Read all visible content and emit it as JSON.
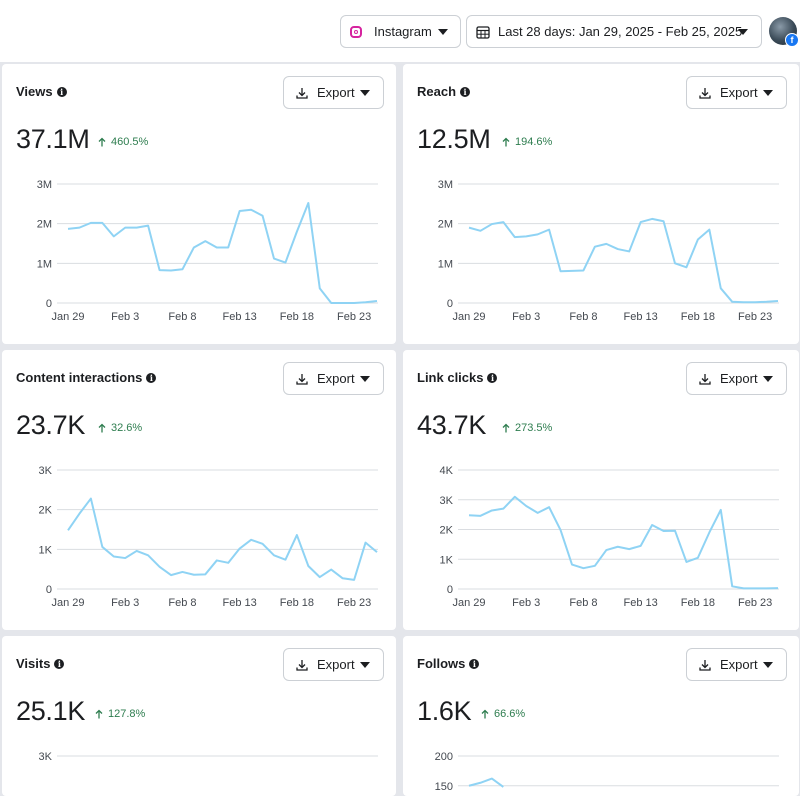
{
  "header": {
    "platform_label": "Instagram",
    "date_range_label": "Last 28 days: Jan 29, 2025 - Feb 25, 2025",
    "platform_icon": "instagram-icon",
    "date_icon": "calendar-icon",
    "avatar_badge": "f"
  },
  "colors": {
    "line": "#8fd3f4",
    "positive_change": "#2e7d4f",
    "grid": "#dadde1"
  },
  "export_label": "Export",
  "x_tick_labels": [
    "Jan 29",
    "Feb 3",
    "Feb 8",
    "Feb 13",
    "Feb 18",
    "Feb 23"
  ],
  "cards": [
    {
      "title": "Views",
      "value": "37.1M",
      "change": "460.5%",
      "chart_data": {
        "type": "line",
        "ylim": [
          0,
          3000000
        ],
        "y_ticks": [
          0,
          1000000,
          2000000,
          3000000
        ],
        "y_tick_labels": [
          "0",
          "1M",
          "2M",
          "3M"
        ],
        "x": [
          "Jan 29",
          "Jan 30",
          "Jan 31",
          "Feb 1",
          "Feb 2",
          "Feb 3",
          "Feb 4",
          "Feb 5",
          "Feb 6",
          "Feb 7",
          "Feb 8",
          "Feb 9",
          "Feb 10",
          "Feb 11",
          "Feb 12",
          "Feb 13",
          "Feb 14",
          "Feb 15",
          "Feb 16",
          "Feb 17",
          "Feb 18",
          "Feb 19",
          "Feb 20",
          "Feb 21",
          "Feb 22",
          "Feb 23",
          "Feb 24",
          "Feb 25"
        ],
        "values": [
          1870000,
          1900000,
          2020000,
          2020000,
          1680000,
          1900000,
          1900000,
          1950000,
          830000,
          820000,
          850000,
          1400000,
          1560000,
          1400000,
          1400000,
          2320000,
          2350000,
          2200000,
          1120000,
          1020000,
          1800000,
          2520000,
          370000,
          0,
          0,
          0,
          20000,
          50000
        ]
      }
    },
    {
      "title": "Reach",
      "value": "12.5M",
      "change": "194.6%",
      "chart_data": {
        "type": "line",
        "ylim": [
          0,
          3000000
        ],
        "y_ticks": [
          0,
          1000000,
          2000000,
          3000000
        ],
        "y_tick_labels": [
          "0",
          "1M",
          "2M",
          "3M"
        ],
        "x": [
          "Jan 29",
          "Jan 30",
          "Jan 31",
          "Feb 1",
          "Feb 2",
          "Feb 3",
          "Feb 4",
          "Feb 5",
          "Feb 6",
          "Feb 7",
          "Feb 8",
          "Feb 9",
          "Feb 10",
          "Feb 11",
          "Feb 12",
          "Feb 13",
          "Feb 14",
          "Feb 15",
          "Feb 16",
          "Feb 17",
          "Feb 18",
          "Feb 19",
          "Feb 20",
          "Feb 21",
          "Feb 22",
          "Feb 23",
          "Feb 24",
          "Feb 25"
        ],
        "values": [
          1900000,
          1820000,
          1990000,
          2040000,
          1660000,
          1680000,
          1730000,
          1850000,
          800000,
          810000,
          820000,
          1420000,
          1490000,
          1360000,
          1300000,
          2040000,
          2120000,
          2060000,
          1000000,
          900000,
          1600000,
          1850000,
          370000,
          30000,
          20000,
          20000,
          30000,
          50000
        ]
      }
    },
    {
      "title": "Content interactions",
      "value": "23.7K",
      "change": "32.6%",
      "chart_data": {
        "type": "line",
        "ylim": [
          0,
          3000
        ],
        "y_ticks": [
          0,
          1000,
          2000,
          3000
        ],
        "y_tick_labels": [
          "0",
          "1K",
          "2K",
          "3K"
        ],
        "x": [
          "Jan 29",
          "Jan 30",
          "Jan 31",
          "Feb 1",
          "Feb 2",
          "Feb 3",
          "Feb 4",
          "Feb 5",
          "Feb 6",
          "Feb 7",
          "Feb 8",
          "Feb 9",
          "Feb 10",
          "Feb 11",
          "Feb 12",
          "Feb 13",
          "Feb 14",
          "Feb 15",
          "Feb 16",
          "Feb 17",
          "Feb 18",
          "Feb 19",
          "Feb 20",
          "Feb 21",
          "Feb 22",
          "Feb 23",
          "Feb 24",
          "Feb 25"
        ],
        "values": [
          1480,
          1900,
          2280,
          1060,
          820,
          780,
          960,
          850,
          560,
          350,
          430,
          360,
          370,
          720,
          660,
          1020,
          1240,
          1140,
          850,
          740,
          1360,
          580,
          300,
          490,
          270,
          230,
          1170,
          930
        ]
      }
    },
    {
      "title": "Link clicks",
      "value": "43.7K",
      "change": "273.5%",
      "chart_data": {
        "type": "line",
        "ylim": [
          0,
          4000
        ],
        "y_ticks": [
          0,
          1000,
          2000,
          3000,
          4000
        ],
        "y_tick_labels": [
          "0",
          "1K",
          "2K",
          "3K",
          "4K"
        ],
        "x": [
          "Jan 29",
          "Jan 30",
          "Jan 31",
          "Feb 1",
          "Feb 2",
          "Feb 3",
          "Feb 4",
          "Feb 5",
          "Feb 6",
          "Feb 7",
          "Feb 8",
          "Feb 9",
          "Feb 10",
          "Feb 11",
          "Feb 12",
          "Feb 13",
          "Feb 14",
          "Feb 15",
          "Feb 16",
          "Feb 17",
          "Feb 18",
          "Feb 19",
          "Feb 20",
          "Feb 21",
          "Feb 22",
          "Feb 23",
          "Feb 24",
          "Feb 25"
        ],
        "values": [
          2480,
          2460,
          2640,
          2700,
          3100,
          2790,
          2560,
          2750,
          1980,
          820,
          700,
          780,
          1310,
          1420,
          1340,
          1450,
          2150,
          1950,
          1960,
          910,
          1050,
          1900,
          2660,
          90,
          20,
          20,
          20,
          30
        ]
      }
    },
    {
      "title": "Visits",
      "value": "25.1K",
      "change": "127.8%",
      "chart_data": {
        "type": "line",
        "ylim": [
          0,
          3000
        ],
        "y_ticks": [
          3000
        ],
        "y_tick_labels": [
          "3K"
        ],
        "x": [],
        "values": []
      }
    },
    {
      "title": "Follows",
      "value": "1.6K",
      "change": "66.6%",
      "chart_data": {
        "type": "line",
        "ylim": [
          0,
          200
        ],
        "y_ticks": [
          150,
          200
        ],
        "y_tick_labels": [
          "150",
          "200"
        ],
        "x": [
          "Jan 29",
          "Jan 30",
          "Jan 31",
          "Feb 1"
        ],
        "values": [
          150,
          155,
          162,
          148
        ]
      }
    }
  ]
}
